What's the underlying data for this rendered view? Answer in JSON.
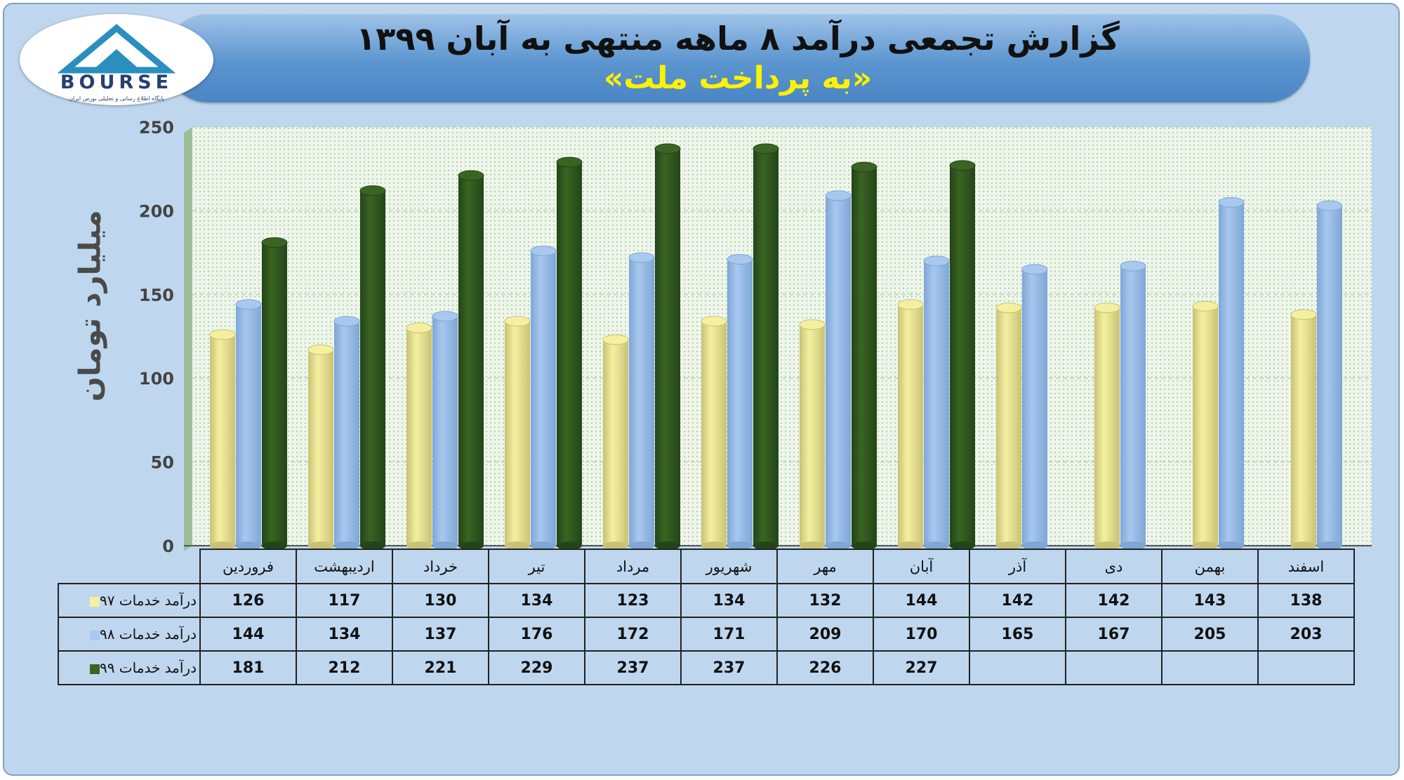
{
  "header": {
    "title": "گزارش تجمعی درآمد ۸ ماهه منتهی به آبان ۱۳۹۹",
    "subtitle": "«به پرداخت ملت»"
  },
  "logo": {
    "text": "BOURSE",
    "caption": "پایگاه اطلاع رسانی و تحلیلی بورس ایران"
  },
  "colors": {
    "series_97": "#f5f0a0",
    "series_98": "#a8c8ee",
    "series_99": "#3a6421",
    "plot_bg": "#eef5ea"
  },
  "chart_data": {
    "type": "bar",
    "ylabel": "میلیارد تومان",
    "ylim": [
      0,
      250
    ],
    "yticks": [
      "0",
      "50",
      "100",
      "150",
      "200",
      "250"
    ],
    "grid": true,
    "categories": [
      "فروردین",
      "اردیبهشت",
      "خرداد",
      "تیر",
      "مرداد",
      "شهریور",
      "مهر",
      "آبان",
      "آذر",
      "دی",
      "بهمن",
      "اسفند"
    ],
    "series": [
      {
        "name": "درآمد خدمات ۹۷",
        "values": [
          126,
          117,
          130,
          134,
          123,
          134,
          132,
          144,
          142,
          142,
          143,
          138
        ]
      },
      {
        "name": "درآمد خدمات ۹۸",
        "values": [
          144,
          134,
          137,
          176,
          172,
          171,
          209,
          170,
          165,
          167,
          205,
          203
        ]
      },
      {
        "name": "درآمد خدمات ۹۹",
        "values": [
          181,
          212,
          221,
          229,
          237,
          237,
          226,
          227,
          null,
          null,
          null,
          null
        ]
      }
    ]
  }
}
